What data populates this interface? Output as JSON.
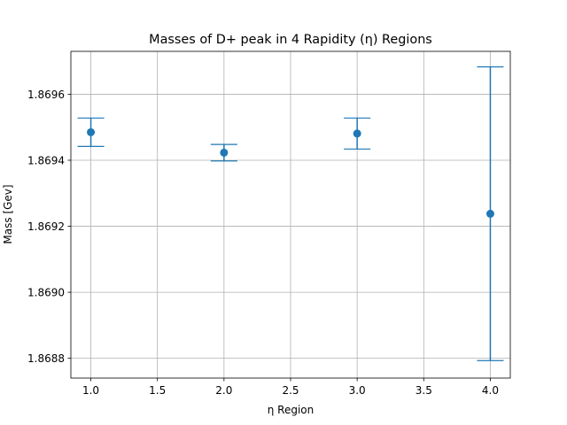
{
  "chart_data": {
    "type": "scatter",
    "title": "Masses of D+ peak in 4 Rapidity (η) Regions",
    "xlabel": "η Region",
    "ylabel": "Mass [Gev]",
    "xlim": [
      0.85,
      4.15
    ],
    "ylim": [
      1.86874,
      1.86973
    ],
    "xticks": [
      1.0,
      1.5,
      2.0,
      2.5,
      3.0,
      3.5,
      4.0
    ],
    "xtick_labels": [
      "1.0",
      "1.5",
      "2.0",
      "2.5",
      "3.0",
      "3.5",
      "4.0"
    ],
    "yticks": [
      1.8688,
      1.869,
      1.8692,
      1.8694,
      1.8696
    ],
    "ytick_labels": [
      "1.8688",
      "1.8690",
      "1.8692",
      "1.8694",
      "1.8696"
    ],
    "grid": true,
    "color": "#1f77b4",
    "series": [
      {
        "x": [
          1.0,
          2.0,
          3.0,
          4.0
        ],
        "y": [
          1.869485,
          1.869423,
          1.869481,
          1.869238
        ],
        "yerr": [
          4.3e-05,
          2.5e-05,
          4.7e-05,
          0.000445
        ]
      }
    ]
  }
}
